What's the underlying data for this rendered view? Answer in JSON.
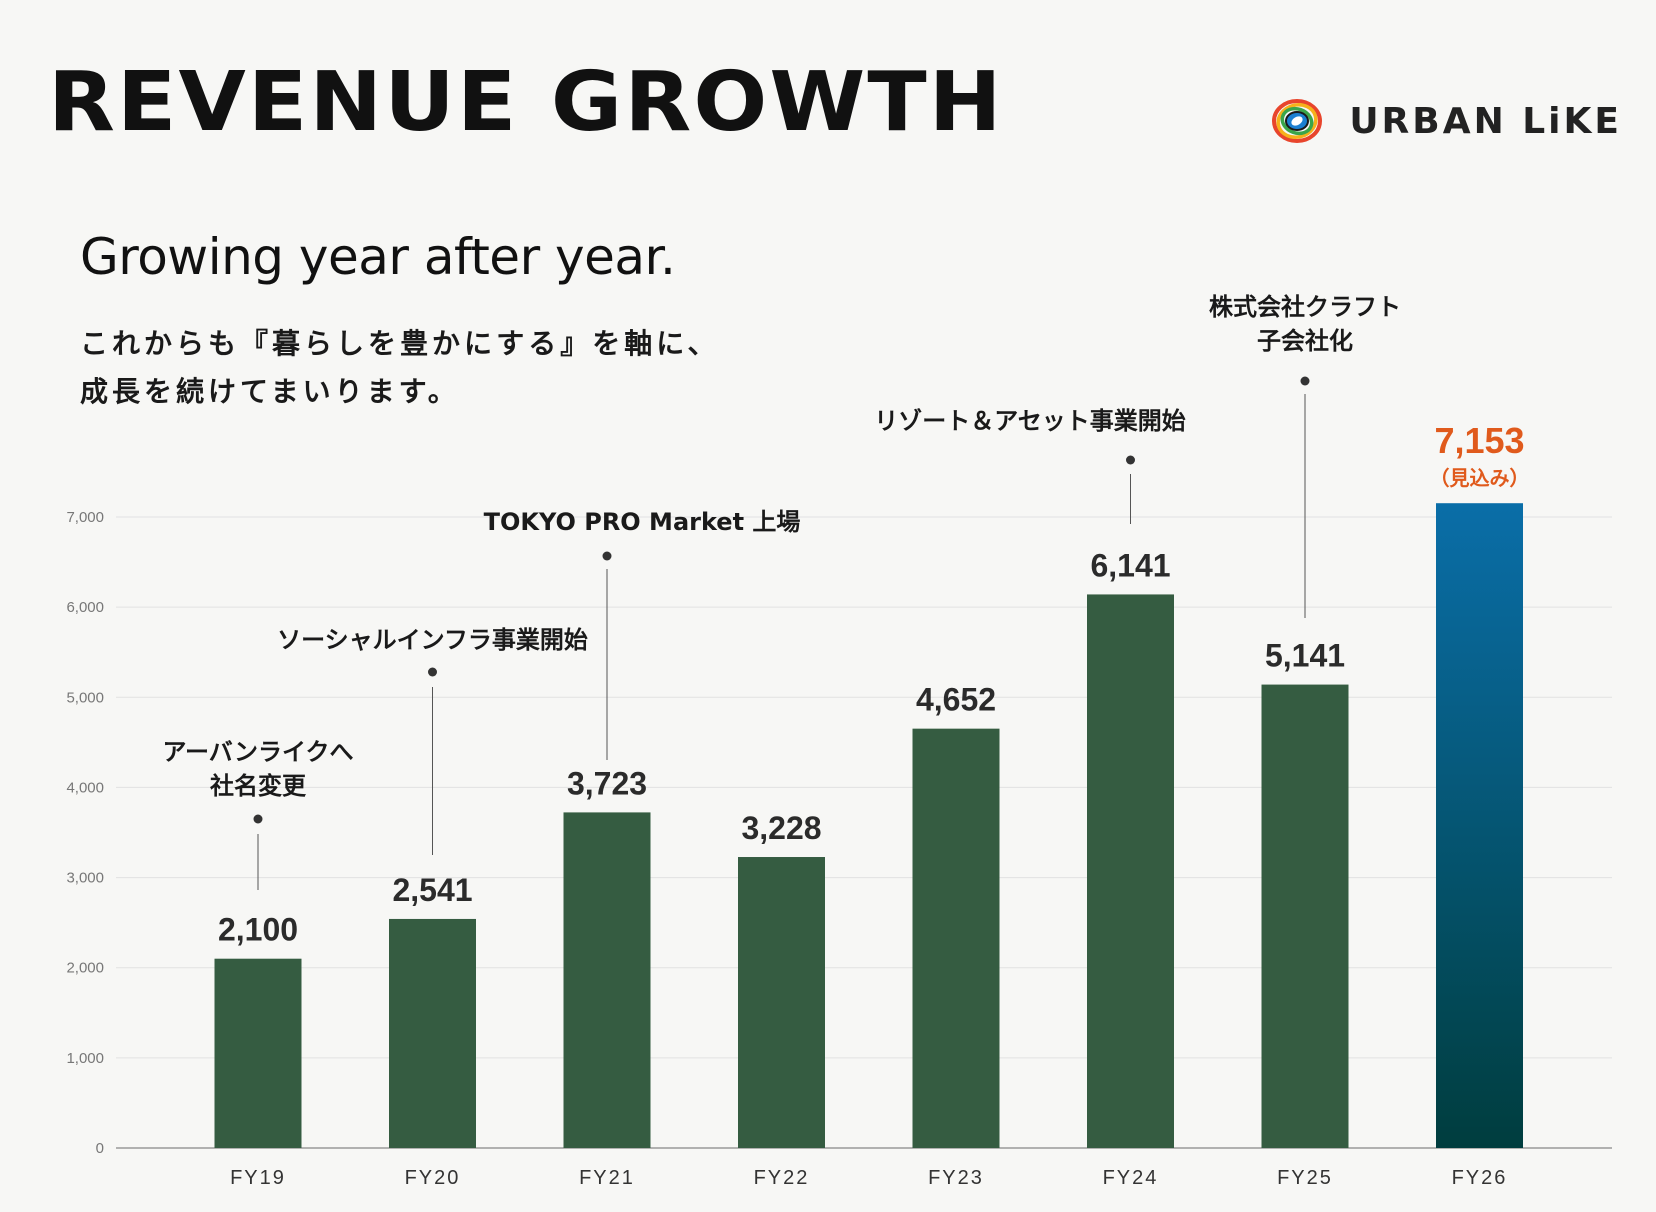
{
  "header": {
    "title": "REVENUE GROWTH",
    "brand": "URBAN LiKE",
    "brand_icon": "brand-ring-logo"
  },
  "subtitle": "Growing year after year.",
  "lead": {
    "line1": "これからも『暮らしを豊かにする』を軸に、",
    "line2": "成長を続けてまいります。"
  },
  "chart_data": {
    "type": "bar",
    "categories": [
      "FY19",
      "FY20",
      "FY21",
      "FY22",
      "FY23",
      "FY24",
      "FY25",
      "FY26"
    ],
    "values": [
      2100,
      2541,
      3723,
      3228,
      4652,
      6141,
      5141,
      7153
    ],
    "value_labels": [
      "2,100",
      "2,541",
      "3,723",
      "3,228",
      "4,652",
      "6,141",
      "5,141",
      "7,153"
    ],
    "ylim": [
      0,
      7000
    ],
    "yticks": [
      0,
      1000,
      2000,
      3000,
      4000,
      5000,
      6000,
      7000
    ],
    "ytick_labels": [
      "0",
      "1,000",
      "2,000",
      "3,000",
      "4,000",
      "5,000",
      "6,000",
      "7,000"
    ],
    "grid": true,
    "highlight": {
      "index": 7,
      "sublabel": "（見込み）"
    },
    "annotations": [
      {
        "index": 0,
        "lines": [
          "アーバンライクへ",
          "社名変更"
        ]
      },
      {
        "index": 1,
        "lines": [
          "ソーシャルインフラ事業開始"
        ]
      },
      {
        "index": 2,
        "lines": [
          "TOKYO PRO Market 上場"
        ]
      },
      {
        "index": 5,
        "lines": [
          "リゾート＆アセット事業開始"
        ]
      },
      {
        "index": 6,
        "lines": [
          "株式会社クラフト",
          "子会社化"
        ]
      }
    ],
    "colors": {
      "bar": "#355c41",
      "highlight_top": "#0a6ea8",
      "highlight_bottom": "#003d3e",
      "highlight_label": "#e05a1c"
    }
  }
}
